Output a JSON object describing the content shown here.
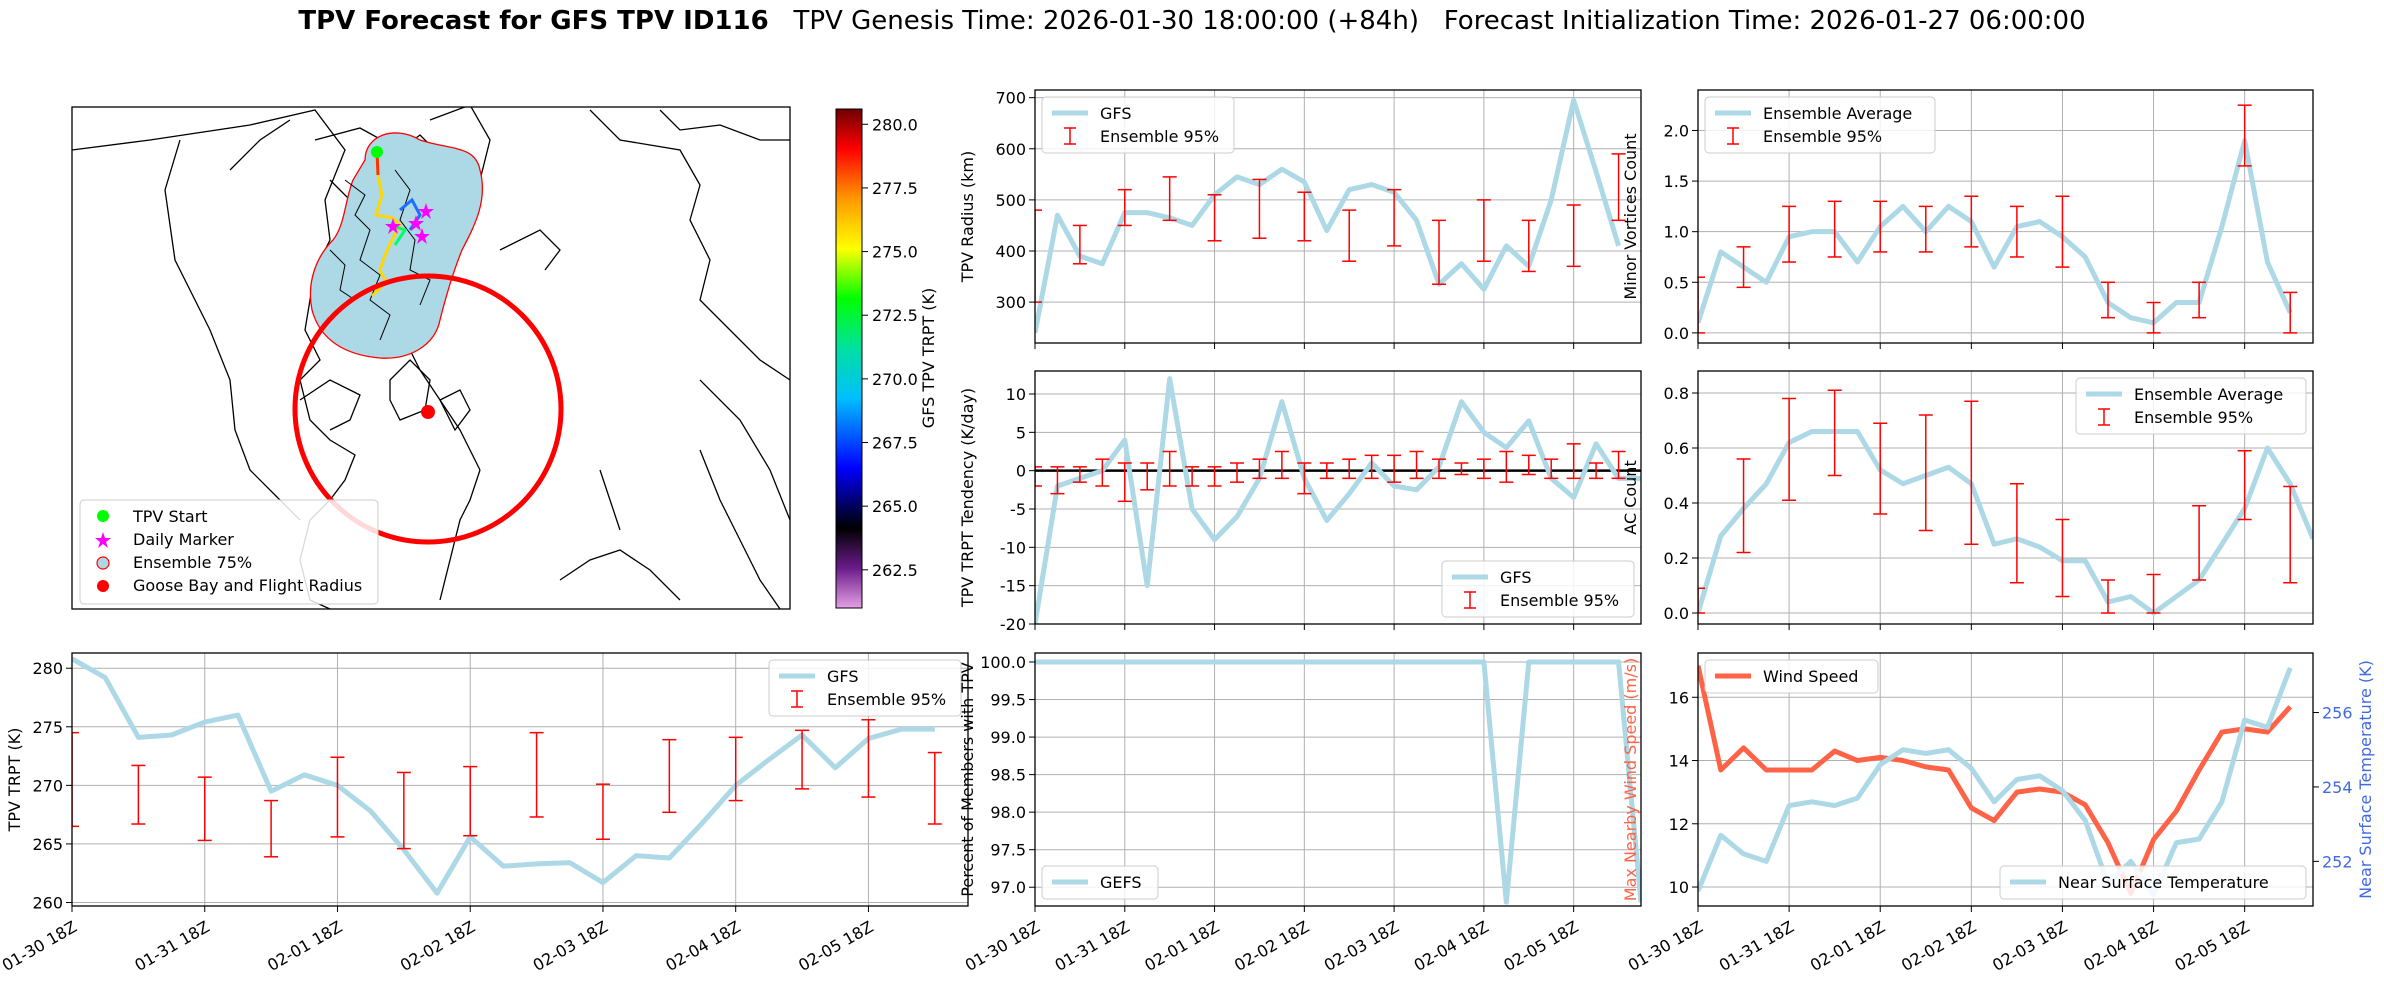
{
  "title": {
    "bold": "TPV Forecast for GFS TPV ID116",
    "rest": "   TPV Genesis Time: 2026-01-30 18:00:00 (+84h)   Forecast Initialization Time: 2026-01-27 06:00:00"
  },
  "colors": {
    "gfs_line": "#add8e6",
    "errbar": "#ff0000",
    "wind": "#ff6347",
    "temp_axis": "#4169e1",
    "map_fill": "#add8e6",
    "circle": "#ff0000"
  },
  "map": {
    "legend": [
      "TPV Start",
      "Daily Marker",
      "Ensemble 75%",
      "Goose Bay and Flight Radius"
    ],
    "colorbar_label": "GFS TPV TRPT (K)",
    "colorbar_ticks": [
      "262.5",
      "265.0",
      "267.5",
      "270.0",
      "272.5",
      "275.0",
      "277.5",
      "280.0"
    ],
    "colorbar_range": [
      261.0,
      280.6
    ]
  },
  "chart_data": [
    {
      "id": "radius",
      "type": "line",
      "ylabel": "TPV Radius (km)",
      "ylim": [
        220,
        715
      ],
      "yticks": [
        300,
        400,
        500,
        600,
        700
      ],
      "legend": [
        "GFS",
        "Ensemble 95%"
      ],
      "legend_pos": "top-left",
      "series": [
        {
          "name": "GFS",
          "values": [
            240,
            470,
            390,
            375,
            475,
            475,
            465,
            450,
            510,
            545,
            530,
            560,
            535,
            440,
            520,
            530,
            515,
            460,
            335,
            375,
            325,
            410,
            370,
            500,
            695,
            555,
            410
          ]
        }
      ],
      "errorbars": [
        {
          "i": 0,
          "lo": 300,
          "hi": 480
        },
        {
          "i": 2,
          "lo": 375,
          "hi": 450
        },
        {
          "i": 4,
          "lo": 450,
          "hi": 520
        },
        {
          "i": 6,
          "lo": 460,
          "hi": 545
        },
        {
          "i": 8,
          "lo": 420,
          "hi": 510
        },
        {
          "i": 10,
          "lo": 425,
          "hi": 540
        },
        {
          "i": 12,
          "lo": 420,
          "hi": 515
        },
        {
          "i": 14,
          "lo": 380,
          "hi": 480
        },
        {
          "i": 16,
          "lo": 410,
          "hi": 520
        },
        {
          "i": 18,
          "lo": 335,
          "hi": 460
        },
        {
          "i": 20,
          "lo": 380,
          "hi": 500
        },
        {
          "i": 22,
          "lo": 360,
          "hi": 460
        },
        {
          "i": 24,
          "lo": 370,
          "hi": 490
        },
        {
          "i": 26,
          "lo": 460,
          "hi": 590
        }
      ]
    },
    {
      "id": "minor",
      "type": "line",
      "ylabel": "Minor Vortices Count",
      "ylim": [
        -0.1,
        2.4
      ],
      "yticks": [
        "0.0",
        "0.5",
        "1.0",
        "1.5",
        "2.0"
      ],
      "legend": [
        "Ensemble Average",
        "Ensemble 95%"
      ],
      "legend_pos": "top-left",
      "series": [
        {
          "name": "Ensemble Average",
          "values": [
            0.1,
            0.8,
            0.65,
            0.5,
            0.95,
            1.0,
            1.0,
            0.7,
            1.05,
            1.25,
            1.0,
            1.25,
            1.1,
            0.65,
            1.05,
            1.1,
            0.95,
            0.75,
            0.3,
            0.15,
            0.1,
            0.3,
            0.3,
            1.05,
            1.9,
            0.7,
            0.2
          ]
        }
      ],
      "errorbars": [
        {
          "i": 0,
          "lo": 0.0,
          "hi": 0.55
        },
        {
          "i": 2,
          "lo": 0.45,
          "hi": 0.85
        },
        {
          "i": 4,
          "lo": 0.7,
          "hi": 1.25
        },
        {
          "i": 6,
          "lo": 0.75,
          "hi": 1.3
        },
        {
          "i": 8,
          "lo": 0.8,
          "hi": 1.3
        },
        {
          "i": 10,
          "lo": 0.8,
          "hi": 1.25
        },
        {
          "i": 12,
          "lo": 0.85,
          "hi": 1.35
        },
        {
          "i": 14,
          "lo": 0.75,
          "hi": 1.25
        },
        {
          "i": 16,
          "lo": 0.65,
          "hi": 1.35
        },
        {
          "i": 18,
          "lo": 0.15,
          "hi": 0.5
        },
        {
          "i": 20,
          "lo": 0.0,
          "hi": 0.3
        },
        {
          "i": 22,
          "lo": 0.15,
          "hi": 0.5
        },
        {
          "i": 24,
          "lo": 1.65,
          "hi": 2.25
        },
        {
          "i": 26,
          "lo": 0.0,
          "hi": 0.4
        }
      ]
    },
    {
      "id": "tendency",
      "type": "line",
      "ylabel": "TPV TRPT Tendency (K/day)",
      "ylim": [
        -20,
        13
      ],
      "yticks": [
        -20,
        -15,
        -10,
        -5,
        0,
        5,
        10
      ],
      "legend": [
        "GFS",
        "Ensemble 95%"
      ],
      "legend_pos": "bottom-right",
      "zero_line": true,
      "series": [
        {
          "name": "GFS",
          "values": [
            -20,
            -2,
            -1,
            0,
            4,
            -15,
            12,
            -5,
            -9,
            -6,
            -1,
            9,
            -1,
            -6.5,
            -3,
            1,
            -2,
            -2.5,
            0.5,
            9,
            5,
            3,
            6.5,
            -1,
            -3.5,
            3.5,
            -1,
            -1
          ]
        }
      ],
      "errorbars": [
        {
          "i": 0,
          "lo": -2,
          "hi": 0.5
        },
        {
          "i": 1,
          "lo": -3,
          "hi": 0.5
        },
        {
          "i": 2,
          "lo": -1.5,
          "hi": 0.5
        },
        {
          "i": 3,
          "lo": -2,
          "hi": 1.5
        },
        {
          "i": 4,
          "lo": -4,
          "hi": 1
        },
        {
          "i": 5,
          "lo": -2.5,
          "hi": 1
        },
        {
          "i": 6,
          "lo": -2,
          "hi": 2.5
        },
        {
          "i": 7,
          "lo": -2,
          "hi": 0.5
        },
        {
          "i": 8,
          "lo": -2,
          "hi": 0.5
        },
        {
          "i": 9,
          "lo": -1.5,
          "hi": 1
        },
        {
          "i": 10,
          "lo": -1,
          "hi": 1.5
        },
        {
          "i": 11,
          "lo": -1,
          "hi": 2.5
        },
        {
          "i": 12,
          "lo": -3,
          "hi": 1
        },
        {
          "i": 13,
          "lo": -1,
          "hi": 1
        },
        {
          "i": 14,
          "lo": -1,
          "hi": 1.5
        },
        {
          "i": 15,
          "lo": -1,
          "hi": 2
        },
        {
          "i": 16,
          "lo": -1.5,
          "hi": 2
        },
        {
          "i": 17,
          "lo": -1,
          "hi": 2.5
        },
        {
          "i": 18,
          "lo": -1,
          "hi": 1.5
        },
        {
          "i": 19,
          "lo": -0.5,
          "hi": 1
        },
        {
          "i": 20,
          "lo": -1,
          "hi": 1.5
        },
        {
          "i": 21,
          "lo": -1.5,
          "hi": 2.5
        },
        {
          "i": 22,
          "lo": -0.5,
          "hi": 2
        },
        {
          "i": 23,
          "lo": -1,
          "hi": 1.5
        },
        {
          "i": 24,
          "lo": -1,
          "hi": 3.5
        },
        {
          "i": 25,
          "lo": -1,
          "hi": 1
        },
        {
          "i": 26,
          "lo": -1,
          "hi": 2.5
        }
      ]
    },
    {
      "id": "ac",
      "type": "line",
      "ylabel": "AC Count",
      "ylim": [
        -0.04,
        0.88
      ],
      "yticks": [
        "0.0",
        "0.2",
        "0.4",
        "0.6",
        "0.8"
      ],
      "legend": [
        "Ensemble Average",
        "Ensemble 95%"
      ],
      "legend_pos": "top-right",
      "series": [
        {
          "name": "Ensemble Average",
          "values": [
            0.0,
            0.28,
            0.38,
            0.47,
            0.62,
            0.66,
            0.66,
            0.66,
            0.52,
            0.47,
            0.5,
            0.53,
            0.47,
            0.25,
            0.27,
            0.24,
            0.19,
            0.19,
            0.04,
            0.06,
            0.0,
            0.06,
            0.12,
            0.25,
            0.38,
            0.6,
            0.47,
            0.27
          ]
        }
      ],
      "errorbars": [
        {
          "i": 0,
          "lo": 0.0,
          "hi": 0.09
        },
        {
          "i": 2,
          "lo": 0.22,
          "hi": 0.56
        },
        {
          "i": 4,
          "lo": 0.41,
          "hi": 0.78
        },
        {
          "i": 6,
          "lo": 0.5,
          "hi": 0.81
        },
        {
          "i": 8,
          "lo": 0.36,
          "hi": 0.69
        },
        {
          "i": 10,
          "lo": 0.3,
          "hi": 0.72
        },
        {
          "i": 12,
          "lo": 0.25,
          "hi": 0.77
        },
        {
          "i": 14,
          "lo": 0.11,
          "hi": 0.47
        },
        {
          "i": 16,
          "lo": 0.06,
          "hi": 0.34
        },
        {
          "i": 18,
          "lo": 0.0,
          "hi": 0.12
        },
        {
          "i": 20,
          "lo": 0.0,
          "hi": 0.14
        },
        {
          "i": 22,
          "lo": 0.12,
          "hi": 0.39
        },
        {
          "i": 24,
          "lo": 0.34,
          "hi": 0.59
        },
        {
          "i": 26,
          "lo": 0.11,
          "hi": 0.46
        }
      ]
    },
    {
      "id": "trpt",
      "type": "line",
      "ylabel": "TPV TRPT (K)",
      "ylim": [
        259.7,
        281.3
      ],
      "yticks": [
        260,
        265,
        270,
        275,
        280
      ],
      "legend": [
        "GFS",
        "Ensemble 95%"
      ],
      "legend_pos": "top-right",
      "xtick_labels": [
        "01-30 18Z",
        "01-31 18Z",
        "02-01 18Z",
        "02-02 18Z",
        "02-03 18Z",
        "02-04 18Z",
        "02-05 18Z"
      ],
      "series": [
        {
          "name": "GFS",
          "values": [
            280.8,
            279.2,
            274.1,
            274.3,
            275.4,
            276.0,
            269.5,
            270.9,
            270.0,
            267.8,
            264.5,
            260.8,
            265.6,
            263.1,
            263.3,
            263.4,
            261.7,
            264.0,
            263.8,
            266.8,
            270.0,
            272.2,
            274.3,
            271.5,
            274.0,
            274.8,
            274.8
          ]
        }
      ],
      "errorbars": [
        {
          "i": 0,
          "lo": 266.5,
          "hi": 274.5
        },
        {
          "i": 2,
          "lo": 266.7,
          "hi": 271.7
        },
        {
          "i": 4,
          "lo": 265.3,
          "hi": 270.7
        },
        {
          "i": 6,
          "lo": 263.9,
          "hi": 268.7
        },
        {
          "i": 8,
          "lo": 265.6,
          "hi": 272.4
        },
        {
          "i": 10,
          "lo": 264.6,
          "hi": 271.1
        },
        {
          "i": 12,
          "lo": 265.7,
          "hi": 271.6
        },
        {
          "i": 14,
          "lo": 267.3,
          "hi": 274.5
        },
        {
          "i": 16,
          "lo": 265.4,
          "hi": 270.1
        },
        {
          "i": 18,
          "lo": 267.7,
          "hi": 273.9
        },
        {
          "i": 20,
          "lo": 268.7,
          "hi": 274.1
        },
        {
          "i": 22,
          "lo": 269.7,
          "hi": 274.7
        },
        {
          "i": 24,
          "lo": 269.0,
          "hi": 275.6
        },
        {
          "i": 26,
          "lo": 266.7,
          "hi": 272.8
        }
      ]
    },
    {
      "id": "percent",
      "type": "line",
      "ylabel": "Percent of Members with TPV",
      "ylim": [
        96.75,
        100.12
      ],
      "yticks": [
        "97.0",
        "97.5",
        "98.0",
        "98.5",
        "99.0",
        "99.5",
        "100.0"
      ],
      "legend": [
        "GEFS"
      ],
      "legend_pos": "bottom-left",
      "xtick_labels": [
        "01-30 18Z",
        "01-31 18Z",
        "02-01 18Z",
        "02-02 18Z",
        "02-03 18Z",
        "02-04 18Z",
        "02-05 18Z"
      ],
      "series": [
        {
          "name": "GEFS",
          "values": [
            100,
            100,
            100,
            100,
            100,
            100,
            100,
            100,
            100,
            100,
            100,
            100,
            100,
            100,
            100,
            100,
            100,
            100,
            100,
            100,
            100,
            96.8,
            100,
            100,
            100,
            100,
            100,
            96.8
          ]
        }
      ]
    },
    {
      "id": "wind_temp",
      "type": "line",
      "ylabel": "Max Nearby Wind Speed (m/s)",
      "ylabel_right": "Near Surface Temperature (K)",
      "ylim": [
        9.4,
        17.4
      ],
      "yticks": [
        10,
        12,
        14,
        16
      ],
      "ylim_right": [
        250.8,
        257.6
      ],
      "yticks_right": [
        252,
        254,
        256
      ],
      "legend": [
        "Wind Speed"
      ],
      "legend_right": [
        "Near Surface Temperature"
      ],
      "xtick_labels": [
        "01-30 18Z",
        "01-31 18Z",
        "02-01 18Z",
        "02-02 18Z",
        "02-03 18Z",
        "02-04 18Z",
        "02-05 18Z"
      ],
      "series": [
        {
          "name": "Wind Speed",
          "values": [
            17.0,
            13.7,
            14.4,
            13.7,
            13.7,
            13.7,
            14.3,
            14.0,
            14.1,
            14.0,
            13.8,
            13.7,
            12.5,
            12.1,
            13.0,
            13.1,
            13.0,
            12.6,
            11.4,
            9.8,
            11.5,
            12.4,
            13.7,
            14.9,
            15.0,
            14.9,
            15.7
          ]
        },
        {
          "name": "Near Surface Temperature",
          "values": [
            251.2,
            252.7,
            252.2,
            252.0,
            253.5,
            253.6,
            253.5,
            253.7,
            254.6,
            255.0,
            254.9,
            255.0,
            254.5,
            253.6,
            254.2,
            254.3,
            253.9,
            253.1,
            251.4,
            252.0,
            251.1,
            252.5,
            252.6,
            253.6,
            255.8,
            255.6,
            257.2
          ]
        }
      ]
    }
  ]
}
